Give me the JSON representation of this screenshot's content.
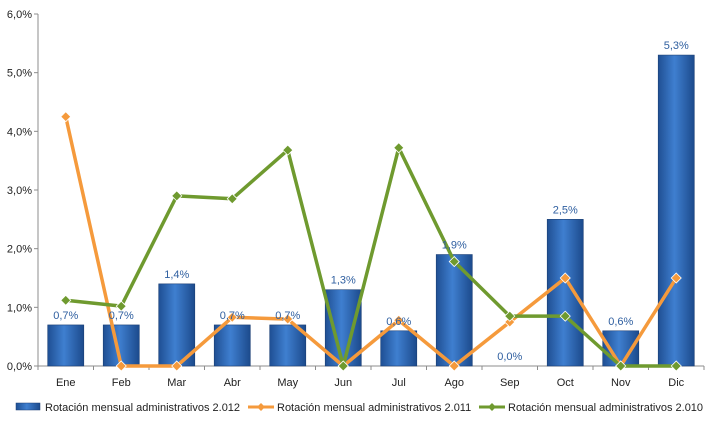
{
  "chart_data": {
    "type": "bar",
    "categories": [
      "Ene",
      "Feb",
      "Mar",
      "Abr",
      "May",
      "Jun",
      "Jul",
      "Ago",
      "Sep",
      "Oct",
      "Nov",
      "Dic"
    ],
    "ylim": [
      0,
      6
    ],
    "yticks": [
      "0,0%",
      "1,0%",
      "2,0%",
      "3,0%",
      "4,0%",
      "5,0%",
      "6,0%"
    ],
    "grid": false,
    "legend_position": "bottom",
    "series": [
      {
        "name": "Rotación mensual administrativos 2.012",
        "type": "bar",
        "color": "#2e67b8",
        "values": [
          0.7,
          0.7,
          1.4,
          0.7,
          0.7,
          1.3,
          0.6,
          1.9,
          0.0,
          2.5,
          0.6,
          5.3
        ],
        "labels": [
          "0,7%",
          "0,7%",
          "1,4%",
          "0,7%",
          "0,7%",
          "1,3%",
          "0,6%",
          "1,9%",
          "0,0%",
          "2,5%",
          "0,6%",
          "5,3%"
        ]
      },
      {
        "name": "Rotación mensual administrativos 2.011",
        "type": "line",
        "color": "#f59a3c",
        "values": [
          4.25,
          0.0,
          0.0,
          0.83,
          0.8,
          0.0,
          0.78,
          0.0,
          0.75,
          1.5,
          0.0,
          1.5
        ]
      },
      {
        "name": "Rotación mensual administrativos 2.010",
        "type": "line",
        "color": "#6f9a2f",
        "values": [
          1.12,
          1.02,
          2.9,
          2.85,
          3.68,
          0.0,
          3.72,
          1.78,
          0.85,
          0.85,
          0.0,
          0.0
        ]
      }
    ]
  }
}
